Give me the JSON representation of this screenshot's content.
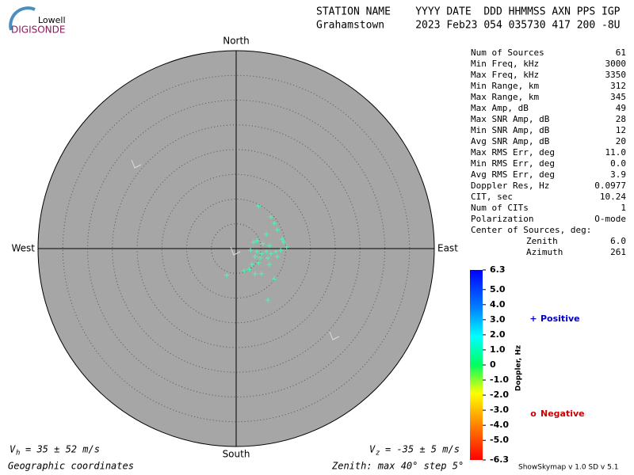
{
  "header": {
    "logo_top": "Lowell",
    "logo_bottom": "DIGISONDE",
    "columns": "STATION NAME    YYYY DATE  DDD HHMMSS AXN PPS IGP",
    "values": "Grahamstown     2023 Feb23 054 035730 417 200 -8U"
  },
  "chart_data": {
    "type": "skymap",
    "directions": {
      "north": "North",
      "south": "South",
      "east": "East",
      "west": "West"
    },
    "zenith_max": 40,
    "zenith_step": 5,
    "x": [
      4.5,
      7.0,
      7.7,
      8.3,
      6.1,
      9.3,
      4.2,
      3.5,
      5.4,
      6.7,
      9.6,
      10.2,
      2.9,
      4.2,
      5.1,
      6.1,
      7.0,
      8.0,
      9.0,
      3.8,
      4.8,
      6.4,
      8.3,
      3.2,
      4.5,
      6.7,
      2.6,
      1.6,
      5.1,
      3.8,
      7.7,
      -1.9,
      6.4
    ],
    "y": [
      8.6,
      6.4,
      5.1,
      3.8,
      2.9,
      1.9,
      1.6,
      1.3,
      1.0,
      0.6,
      1.3,
      0.3,
      -0.3,
      -0.6,
      -1.0,
      -0.6,
      -1.0,
      -0.6,
      -0.3,
      -1.6,
      -1.9,
      -1.9,
      -1.6,
      -3.2,
      -2.9,
      -3.2,
      -4.2,
      -4.5,
      -5.1,
      -5.1,
      -6.1,
      -5.4,
      -10.4
    ],
    "color": "#40ffb0",
    "background": "#a6a6a6",
    "colorbar": {
      "label": "Doppler, Hz",
      "ylim": [
        -6.3,
        6.3
      ],
      "yticks": [
        6.3,
        {
          "value": 5,
          "label": "5.0"
        },
        {
          "value": 4,
          "label": "4.0"
        },
        {
          "value": 3,
          "label": "3.0"
        },
        {
          "value": 2,
          "label": "2.0"
        },
        {
          "value": 1,
          "label": "1.0"
        },
        0,
        {
          "value": -1,
          "label": "-1.0"
        },
        {
          "value": -2,
          "label": "-2.0"
        },
        {
          "value": -3,
          "label": "-3.0"
        },
        {
          "value": -4,
          "label": "-4.0"
        },
        {
          "value": -5,
          "label": "-5.0"
        },
        -6.3
      ]
    },
    "legend": {
      "positive": {
        "symbol": "+",
        "label": "Positive",
        "color": "#0000cc"
      },
      "negative": {
        "symbol": "o",
        "label": "Negative",
        "color": "#cc0000"
      }
    }
  },
  "velocity": {
    "vh": {
      "symbol": "V",
      "sub": "h",
      "text": "= 35 ± 52 m/s"
    },
    "vz": {
      "symbol": "V",
      "sub": "z",
      "text": "= -35 ± 5 m/s"
    }
  },
  "stats": {
    "rows": [
      [
        "Num of Sources",
        "61"
      ],
      [
        "Min Freq, kHz",
        "3000"
      ],
      [
        "Max Freq, kHz",
        "3350"
      ],
      [
        "Min Range, km",
        "312"
      ],
      [
        "Max Range, km",
        "345"
      ],
      [
        "Max Amp, dB",
        "49"
      ],
      [
        "Max SNR Amp, dB",
        "28"
      ],
      [
        "Min SNR Amp, dB",
        "12"
      ],
      [
        "Avg SNR Amp, dB",
        "20"
      ],
      [
        "Max RMS Err, deg",
        "11.0"
      ],
      [
        "Min RMS Err, deg",
        "0.0"
      ],
      [
        "Avg RMS Err, deg",
        "3.9"
      ],
      [
        "Doppler Res, Hz",
        "0.0977"
      ],
      [
        "CIT, sec",
        "10.24"
      ],
      [
        "Num of CITs",
        "1"
      ],
      [
        "Polarization",
        "O-mode"
      ]
    ],
    "center_label": "Center of Sources, deg:",
    "center_rows": [
      [
        "Zenith",
        "6.0"
      ],
      [
        "Azimuth",
        "261"
      ]
    ]
  },
  "footer": {
    "coordinates": "Geographic coordinates",
    "zenith": "Zenith: max 40°  step 5°",
    "version": "ShowSkymap v 1.0  SD v 5.1"
  }
}
